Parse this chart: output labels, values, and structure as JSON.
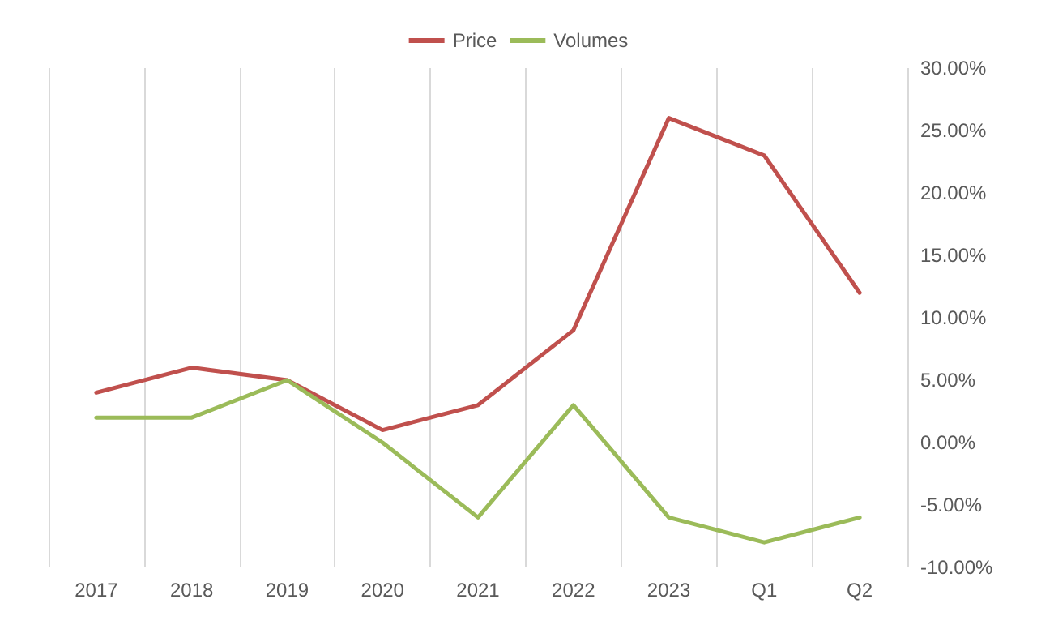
{
  "chart_data": {
    "type": "line",
    "categories": [
      "2017",
      "2018",
      "2019",
      "2020",
      "2021",
      "2022",
      "2023",
      "Q1",
      "Q2"
    ],
    "series": [
      {
        "name": "Price",
        "color": "#c0504d",
        "values": [
          4.0,
          6.0,
          5.0,
          1.0,
          3.0,
          9.0,
          26.0,
          23.0,
          12.0
        ]
      },
      {
        "name": "Volumes",
        "color": "#9bbb59",
        "values": [
          2.0,
          2.0,
          5.0,
          0.0,
          -6.0,
          3.0,
          -6.0,
          -8.0,
          -6.0
        ]
      }
    ],
    "ylim": [
      -10,
      30
    ],
    "yticks": [
      {
        "value": -10,
        "label": "-10.00%"
      },
      {
        "value": -5,
        "label": "-5.00%"
      },
      {
        "value": 0,
        "label": "0.00%"
      },
      {
        "value": 5,
        "label": "5.00%"
      },
      {
        "value": 10,
        "label": "10.00%"
      },
      {
        "value": 15,
        "label": "15.00%"
      },
      {
        "value": 20,
        "label": "20.00%"
      },
      {
        "value": 25,
        "label": "25.00%"
      },
      {
        "value": 30,
        "label": "30.00%"
      }
    ],
    "grid": "x",
    "legend": "top",
    "marker": "none",
    "line_style": "solid"
  }
}
